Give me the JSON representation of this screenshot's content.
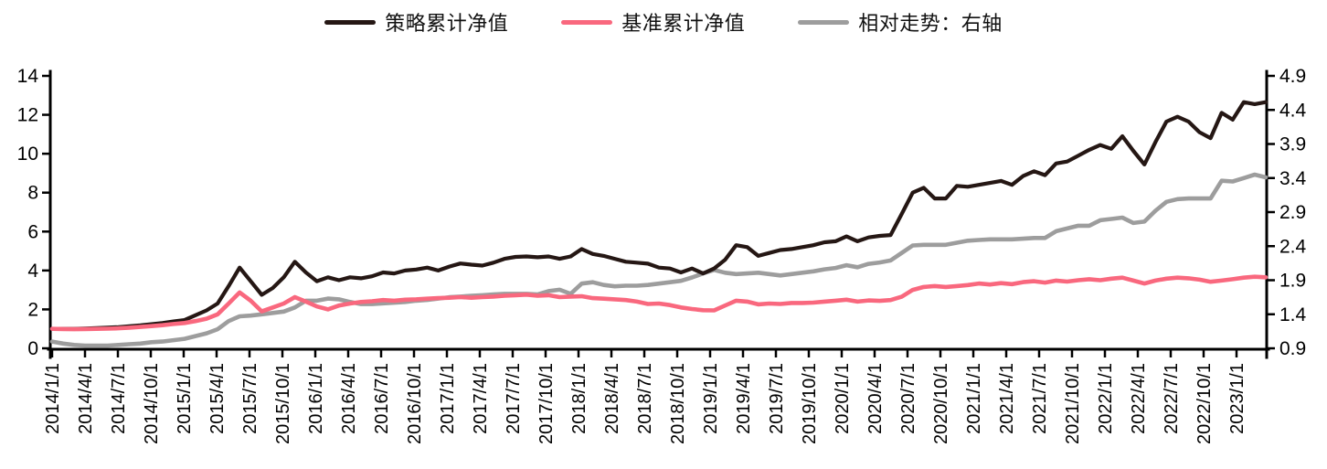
{
  "legend": {
    "items": [
      {
        "label": "策略累计净值",
        "color": "#251714"
      },
      {
        "label": "基准累计净值",
        "color": "#F9687E"
      },
      {
        "label": "相对走势：右轴",
        "color": "#9D9D9D"
      }
    ]
  },
  "chart_data": {
    "type": "line",
    "title": "",
    "xlabel": "",
    "ylabel_left": "",
    "ylabel_right": "",
    "grid": false,
    "legend_position": "top",
    "x_range": [
      "2014/1/1",
      "2023/3/1"
    ],
    "x_frequency": "monthly",
    "x_tick_labels": [
      "2014/1/1",
      "2014/4/1",
      "2014/7/1",
      "2014/10/1",
      "2015/1/1",
      "2015/4/1",
      "2015/7/1",
      "2015/10/1",
      "2016/1/1",
      "2016/4/1",
      "2016/7/1",
      "2016/10/1",
      "2017/1/1",
      "2017/4/1",
      "2017/7/1",
      "2017/10/1",
      "2018/1/1",
      "2018/4/1",
      "2018/7/1",
      "2018/10/1",
      "2019/1/1",
      "2019/4/1",
      "2019/7/1",
      "2019/10/1",
      "2020/1/1",
      "2020/4/1",
      "2020/7/1",
      "2020/10/1",
      "2021/1/1",
      "2021/4/1",
      "2021/7/1",
      "2021/10/1",
      "2022/1/1",
      "2022/4/1",
      "2022/7/1",
      "2022/10/1",
      "2023/1/1"
    ],
    "left_axis": {
      "min": 0,
      "max": 14,
      "ticks": [
        0,
        2,
        4,
        6,
        8,
        10,
        12,
        14
      ]
    },
    "right_axis": {
      "min": 0.9,
      "max": 4.9,
      "ticks": [
        0.9,
        1.4,
        1.9,
        2.4,
        2.9,
        3.4,
        3.9,
        4.4,
        4.9
      ]
    },
    "series": [
      {
        "name": "策略累计净值",
        "axis": "left",
        "color": "#251714",
        "stroke_width": 4.2,
        "z": 2,
        "values": [
          1.0,
          1.0,
          1.0,
          1.02,
          1.04,
          1.06,
          1.09,
          1.13,
          1.18,
          1.24,
          1.3,
          1.38,
          1.45,
          1.7,
          1.95,
          2.3,
          3.2,
          4.15,
          3.45,
          2.75,
          3.1,
          3.65,
          4.45,
          3.9,
          3.45,
          3.65,
          3.5,
          3.65,
          3.6,
          3.7,
          3.9,
          3.85,
          4.0,
          4.05,
          4.15,
          4.0,
          4.2,
          4.36,
          4.3,
          4.25,
          4.4,
          4.6,
          4.7,
          4.72,
          4.68,
          4.72,
          4.6,
          4.72,
          5.1,
          4.85,
          4.75,
          4.6,
          4.45,
          4.4,
          4.35,
          4.15,
          4.1,
          3.9,
          4.1,
          3.85,
          4.1,
          4.55,
          5.3,
          5.2,
          4.75,
          4.9,
          5.05,
          5.1,
          5.2,
          5.3,
          5.45,
          5.5,
          5.75,
          5.5,
          5.7,
          5.78,
          5.82,
          6.9,
          8.0,
          8.25,
          7.7,
          7.7,
          8.35,
          8.3,
          8.4,
          8.5,
          8.6,
          8.4,
          8.85,
          9.1,
          8.9,
          9.5,
          9.6,
          9.9,
          10.2,
          10.45,
          10.25,
          10.9,
          10.15,
          9.45,
          10.6,
          11.65,
          11.9,
          11.65,
          11.1,
          10.8,
          12.1,
          11.75,
          12.65,
          12.55,
          12.65
        ]
      },
      {
        "name": "基准累计净值",
        "axis": "left",
        "color": "#F9687E",
        "stroke_width": 4.6,
        "z": 3,
        "values": [
          1.0,
          0.99,
          0.98,
          0.99,
          1.0,
          1.01,
          1.03,
          1.06,
          1.1,
          1.14,
          1.19,
          1.25,
          1.3,
          1.4,
          1.52,
          1.75,
          2.3,
          2.87,
          2.45,
          1.9,
          2.1,
          2.3,
          2.63,
          2.4,
          2.15,
          2.0,
          2.2,
          2.3,
          2.38,
          2.42,
          2.48,
          2.45,
          2.5,
          2.52,
          2.55,
          2.58,
          2.6,
          2.63,
          2.6,
          2.63,
          2.66,
          2.7,
          2.73,
          2.76,
          2.7,
          2.73,
          2.63,
          2.66,
          2.68,
          2.58,
          2.55,
          2.52,
          2.48,
          2.4,
          2.28,
          2.3,
          2.22,
          2.1,
          2.02,
          1.96,
          1.95,
          2.2,
          2.45,
          2.4,
          2.26,
          2.3,
          2.28,
          2.33,
          2.33,
          2.35,
          2.4,
          2.45,
          2.5,
          2.4,
          2.46,
          2.44,
          2.48,
          2.65,
          3.0,
          3.15,
          3.2,
          3.15,
          3.2,
          3.25,
          3.33,
          3.28,
          3.35,
          3.3,
          3.4,
          3.45,
          3.38,
          3.48,
          3.43,
          3.5,
          3.55,
          3.5,
          3.58,
          3.63,
          3.48,
          3.33,
          3.48,
          3.58,
          3.63,
          3.6,
          3.53,
          3.42,
          3.48,
          3.55,
          3.63,
          3.68,
          3.65
        ]
      },
      {
        "name": "相对走势：右轴",
        "axis": "right",
        "color": "#9D9D9D",
        "stroke_width": 4.6,
        "z": 1,
        "values": [
          1.0,
          0.97,
          0.95,
          0.94,
          0.94,
          0.94,
          0.95,
          0.96,
          0.97,
          0.99,
          1.0,
          1.02,
          1.04,
          1.08,
          1.12,
          1.18,
          1.3,
          1.37,
          1.38,
          1.4,
          1.42,
          1.44,
          1.5,
          1.6,
          1.6,
          1.63,
          1.62,
          1.58,
          1.55,
          1.55,
          1.56,
          1.57,
          1.58,
          1.6,
          1.61,
          1.63,
          1.65,
          1.66,
          1.67,
          1.68,
          1.69,
          1.7,
          1.7,
          1.7,
          1.69,
          1.74,
          1.76,
          1.7,
          1.85,
          1.87,
          1.83,
          1.81,
          1.82,
          1.82,
          1.83,
          1.85,
          1.87,
          1.89,
          1.94,
          2.0,
          2.05,
          2.01,
          1.99,
          2.0,
          2.01,
          1.99,
          1.97,
          1.99,
          2.01,
          2.03,
          2.06,
          2.08,
          2.12,
          2.09,
          2.14,
          2.16,
          2.19,
          2.3,
          2.41,
          2.42,
          2.42,
          2.42,
          2.45,
          2.48,
          2.49,
          2.5,
          2.5,
          2.5,
          2.51,
          2.52,
          2.52,
          2.62,
          2.66,
          2.7,
          2.7,
          2.78,
          2.8,
          2.82,
          2.74,
          2.76,
          2.92,
          3.05,
          3.09,
          3.1,
          3.1,
          3.1,
          3.36,
          3.35,
          3.4,
          3.45,
          3.41
        ]
      }
    ]
  }
}
